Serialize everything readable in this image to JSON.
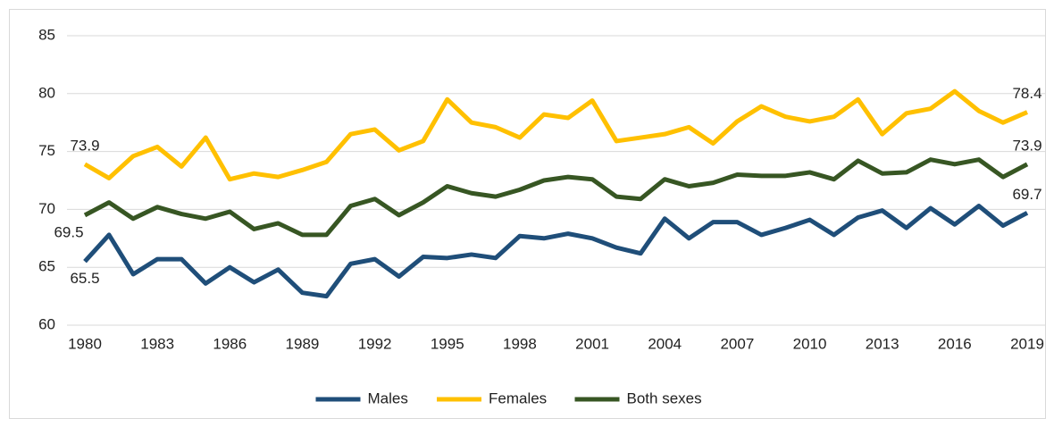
{
  "chart_data": {
    "type": "line",
    "x": [
      1980,
      1981,
      1982,
      1983,
      1984,
      1985,
      1986,
      1987,
      1988,
      1989,
      1990,
      1991,
      1992,
      1993,
      1994,
      1995,
      1996,
      1997,
      1998,
      1999,
      2000,
      2001,
      2002,
      2003,
      2004,
      2005,
      2006,
      2007,
      2008,
      2009,
      2010,
      2011,
      2012,
      2013,
      2014,
      2015,
      2016,
      2017,
      2018,
      2019
    ],
    "xlim": [
      1980,
      2019
    ],
    "xticks": [
      1980,
      1983,
      1986,
      1989,
      1992,
      1995,
      1998,
      2001,
      2004,
      2007,
      2010,
      2013,
      2016,
      2019
    ],
    "ylim": [
      60,
      85
    ],
    "yticks": [
      60,
      65,
      70,
      75,
      80,
      85
    ],
    "grid": true,
    "legend": "bottom",
    "series": [
      {
        "name": "Males",
        "color": "#1f4e79",
        "values": [
          65.5,
          67.8,
          64.4,
          65.7,
          65.7,
          63.6,
          65.0,
          63.7,
          64.8,
          62.8,
          62.5,
          65.3,
          65.7,
          64.2,
          65.9,
          65.8,
          66.1,
          65.8,
          67.7,
          67.5,
          67.9,
          67.5,
          66.7,
          66.2,
          69.2,
          67.5,
          68.9,
          68.9,
          67.8,
          68.4,
          69.1,
          67.8,
          69.3,
          69.9,
          68.4,
          70.1,
          68.7,
          70.3,
          68.6,
          69.7
        ],
        "value_labels": [
          "65.5",
          null,
          null,
          null,
          null,
          null,
          null,
          null,
          null,
          null,
          null,
          null,
          null,
          null,
          null,
          null,
          null,
          null,
          null,
          null,
          null,
          null,
          null,
          null,
          null,
          null,
          null,
          null,
          null,
          null,
          null,
          null,
          null,
          null,
          null,
          null,
          null,
          null,
          null,
          "69.7"
        ]
      },
      {
        "name": "Females",
        "color": "#ffc000",
        "values": [
          73.9,
          72.7,
          74.6,
          75.4,
          73.7,
          76.2,
          72.6,
          73.1,
          72.8,
          73.4,
          74.1,
          76.5,
          76.9,
          75.1,
          75.9,
          79.5,
          77.5,
          77.1,
          76.2,
          78.2,
          77.9,
          79.4,
          75.9,
          76.2,
          76.5,
          77.1,
          75.7,
          77.6,
          78.9,
          78.0,
          77.6,
          78.0,
          79.5,
          76.5,
          78.3,
          78.7,
          80.2,
          78.5,
          77.5,
          78.4
        ],
        "value_labels": [
          "73.9",
          null,
          null,
          null,
          null,
          null,
          null,
          null,
          null,
          null,
          null,
          null,
          null,
          null,
          null,
          null,
          null,
          null,
          null,
          null,
          null,
          null,
          null,
          null,
          null,
          null,
          null,
          null,
          null,
          null,
          null,
          null,
          null,
          null,
          null,
          null,
          null,
          null,
          null,
          "78.4"
        ]
      },
      {
        "name": "Both sexes",
        "color": "#375623",
        "values": [
          69.5,
          70.6,
          69.2,
          70.2,
          69.6,
          69.2,
          69.8,
          68.3,
          68.8,
          67.8,
          67.8,
          70.3,
          70.9,
          69.5,
          70.6,
          72.0,
          71.4,
          71.1,
          71.7,
          72.5,
          72.8,
          72.6,
          71.1,
          70.9,
          72.6,
          72.0,
          72.3,
          73.0,
          72.9,
          72.9,
          73.2,
          72.6,
          74.2,
          73.1,
          73.2,
          74.3,
          73.9,
          74.3,
          72.8,
          73.9
        ],
        "value_labels": [
          "69.5",
          null,
          null,
          null,
          null,
          null,
          null,
          null,
          null,
          null,
          null,
          null,
          null,
          null,
          null,
          null,
          null,
          null,
          null,
          null,
          null,
          null,
          null,
          null,
          null,
          null,
          null,
          null,
          null,
          null,
          null,
          null,
          null,
          null,
          null,
          null,
          null,
          null,
          null,
          "73.9"
        ]
      }
    ]
  }
}
